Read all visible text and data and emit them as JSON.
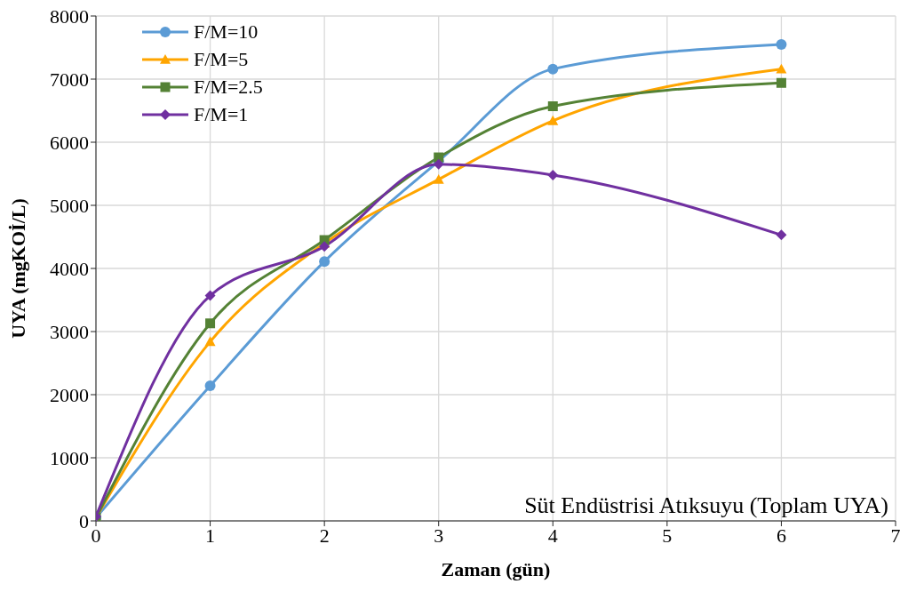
{
  "chart_data": {
    "type": "line",
    "xlabel": "Zaman (gün)",
    "ylabel": "UYA (mgKOİ/L)",
    "x": [
      0,
      1,
      2,
      3,
      4,
      6
    ],
    "series": [
      {
        "name": "F/M=10",
        "color": "#5b9bd5",
        "marker": "circle",
        "values": [
          50,
          2140,
          4110,
          5700,
          7160,
          7550
        ]
      },
      {
        "name": "F/M=5",
        "color": "#ffa500",
        "marker": "triangle",
        "values": [
          50,
          2840,
          4400,
          5410,
          6340,
          7160
        ]
      },
      {
        "name": "F/M=2.5",
        "color": "#548235",
        "marker": "square",
        "values": [
          50,
          3130,
          4450,
          5760,
          6570,
          6940
        ]
      },
      {
        "name": "F/M=1",
        "color": "#7030a0",
        "marker": "diamond",
        "values": [
          70,
          3570,
          4350,
          5650,
          5480,
          4530
        ]
      }
    ],
    "xlim": [
      0,
      7
    ],
    "xticks": [
      0,
      1,
      2,
      3,
      4,
      5,
      6,
      7
    ],
    "ylim": [
      0,
      8000
    ],
    "yticks": [
      0,
      1000,
      2000,
      3000,
      4000,
      5000,
      6000,
      7000,
      8000
    ],
    "grid": true,
    "legend": "top left",
    "annotations": [
      "Süt Endüstrisi Atıksuyu (Toplam UYA)"
    ]
  }
}
